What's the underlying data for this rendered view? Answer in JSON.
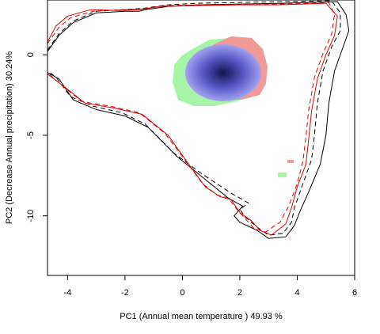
{
  "chart_data": {
    "type": "scatter",
    "title": "",
    "xlabel": "PC1 (Annual mean temperature ) 49.93 %",
    "ylabel": "PC2 (Decrease Annual precipitation) 30.24%",
    "xlim": [
      -4.7,
      6.0
    ],
    "ylim": [
      -13.7,
      3.4
    ],
    "xticks": [
      -4,
      -2,
      0,
      2,
      4,
      6
    ],
    "yticks": [
      0,
      -5,
      -10
    ],
    "grid": false,
    "legend": "none",
    "colors": {
      "line_black": "#000000",
      "line_red": "#e00000",
      "niche_green": "#a6f5a6",
      "niche_red": "#f09a9a",
      "overlap_blue": "#8c8ce6",
      "density_dark": "#141450"
    },
    "series": [
      {
        "style": "solid",
        "color": "#000000",
        "points": [
          [
            -4.7,
            0.2
          ],
          [
            -4.3,
            1.2
          ],
          [
            -3.8,
            2.0
          ],
          [
            -3.0,
            2.6
          ],
          [
            -2.0,
            2.7
          ],
          [
            -1.5,
            2.7
          ],
          [
            -1.3,
            2.8
          ],
          [
            -0.5,
            3.0
          ],
          [
            0.5,
            3.1
          ],
          [
            2.0,
            3.15
          ],
          [
            3.5,
            3.2
          ],
          [
            5.4,
            3.3
          ],
          [
            5.7,
            2.5
          ],
          [
            5.8,
            1.5
          ],
          [
            5.6,
            0.5
          ],
          [
            5.3,
            -1.0
          ],
          [
            5.1,
            -3.0
          ],
          [
            5.0,
            -5.0
          ],
          [
            4.8,
            -6.8
          ],
          [
            4.4,
            -8.5
          ],
          [
            4.1,
            -9.7
          ],
          [
            3.9,
            -10.6
          ],
          [
            3.6,
            -11.3
          ],
          [
            3.0,
            -11.4
          ],
          [
            2.6,
            -10.9
          ],
          [
            2.0,
            -10.4
          ],
          [
            1.8,
            -10.0
          ],
          [
            2.1,
            -9.4
          ],
          [
            1.6,
            -8.9
          ],
          [
            0.7,
            -7.6
          ],
          [
            -0.2,
            -6.3
          ],
          [
            -1.2,
            -4.5
          ],
          [
            -2.0,
            -3.8
          ],
          [
            -3.0,
            -3.4
          ],
          [
            -3.8,
            -2.8
          ],
          [
            -4.3,
            -1.5
          ],
          [
            -4.7,
            -1.1
          ]
        ]
      },
      {
        "style": "dashed",
        "color": "#000000",
        "points": [
          [
            -4.7,
            0.3
          ],
          [
            -4.3,
            1.3
          ],
          [
            -3.8,
            2.1
          ],
          [
            -3.0,
            2.7
          ],
          [
            -2.0,
            2.8
          ],
          [
            -1.3,
            2.9
          ],
          [
            -0.5,
            3.1
          ],
          [
            0.5,
            3.2
          ],
          [
            2.0,
            3.25
          ],
          [
            3.5,
            3.3
          ],
          [
            5.2,
            3.35
          ],
          [
            5.5,
            2.6
          ],
          [
            5.5,
            1.5
          ],
          [
            5.2,
            0.5
          ],
          [
            4.9,
            -1.0
          ],
          [
            4.7,
            -3.0
          ],
          [
            4.6,
            -5.0
          ],
          [
            4.5,
            -6.5
          ],
          [
            4.2,
            -8.0
          ],
          [
            3.9,
            -9.5
          ],
          [
            3.8,
            -10.4
          ],
          [
            3.5,
            -11.1
          ],
          [
            3.0,
            -11.2
          ],
          [
            2.6,
            -10.7
          ],
          [
            2.2,
            -10.1
          ],
          [
            2.0,
            -9.6
          ],
          [
            2.3,
            -9.2
          ],
          [
            1.7,
            -8.6
          ],
          [
            0.6,
            -7.3
          ],
          [
            -0.3,
            -6.1
          ],
          [
            -1.3,
            -4.3
          ],
          [
            -2.1,
            -3.6
          ],
          [
            -3.1,
            -3.2
          ],
          [
            -3.9,
            -2.6
          ],
          [
            -4.4,
            -1.4
          ],
          [
            -4.7,
            -1.0
          ]
        ]
      },
      {
        "style": "solid",
        "color": "#e00000",
        "points": [
          [
            -4.7,
            0.8
          ],
          [
            -4.4,
            1.8
          ],
          [
            -4.0,
            2.4
          ],
          [
            -3.2,
            2.8
          ],
          [
            -2.2,
            2.75
          ],
          [
            -1.5,
            2.8
          ],
          [
            -0.8,
            3.0
          ],
          [
            0.5,
            3.05
          ],
          [
            2.0,
            3.1
          ],
          [
            3.3,
            3.1
          ],
          [
            5.0,
            3.2
          ],
          [
            5.4,
            2.4
          ],
          [
            5.3,
            1.2
          ],
          [
            5.0,
            0.0
          ],
          [
            4.7,
            -1.5
          ],
          [
            4.5,
            -3.5
          ],
          [
            4.4,
            -5.2
          ],
          [
            4.3,
            -6.8
          ],
          [
            4.0,
            -8.2
          ],
          [
            3.8,
            -9.5
          ],
          [
            3.6,
            -10.5
          ],
          [
            3.1,
            -11.2
          ],
          [
            2.7,
            -10.9
          ],
          [
            2.4,
            -10.3
          ],
          [
            2.0,
            -9.8
          ],
          [
            1.7,
            -9.0
          ],
          [
            1.3,
            -8.8
          ],
          [
            0.8,
            -8.2
          ],
          [
            0.3,
            -7.0
          ],
          [
            -0.5,
            -5.0
          ],
          [
            -1.4,
            -3.7
          ],
          [
            -2.4,
            -3.3
          ],
          [
            -3.4,
            -3.0
          ],
          [
            -4.1,
            -2.0
          ],
          [
            -4.7,
            -1.2
          ]
        ]
      },
      {
        "style": "dashed",
        "color": "#e00000",
        "points": [
          [
            -4.7,
            0.7
          ],
          [
            -4.3,
            1.7
          ],
          [
            -3.9,
            2.3
          ],
          [
            -3.1,
            2.7
          ],
          [
            -2.1,
            2.8
          ],
          [
            -1.3,
            2.85
          ],
          [
            -0.6,
            3.05
          ],
          [
            0.6,
            3.1
          ],
          [
            2.1,
            3.15
          ],
          [
            3.4,
            3.15
          ],
          [
            5.1,
            3.25
          ],
          [
            5.3,
            2.5
          ],
          [
            5.2,
            1.3
          ],
          [
            4.9,
            0.1
          ],
          [
            4.6,
            -1.4
          ],
          [
            4.4,
            -3.4
          ],
          [
            4.3,
            -5.1
          ],
          [
            4.2,
            -6.6
          ],
          [
            4.0,
            -8.0
          ],
          [
            3.7,
            -9.4
          ],
          [
            3.4,
            -10.4
          ],
          [
            2.9,
            -11.0
          ],
          [
            2.5,
            -10.8
          ],
          [
            2.2,
            -10.2
          ],
          [
            1.9,
            -9.6
          ],
          [
            1.6,
            -8.9
          ],
          [
            1.2,
            -8.7
          ],
          [
            0.7,
            -8.0
          ],
          [
            0.2,
            -6.8
          ],
          [
            -0.6,
            -4.9
          ],
          [
            -1.5,
            -3.6
          ],
          [
            -2.5,
            -3.2
          ],
          [
            -3.5,
            -2.9
          ],
          [
            -4.2,
            -1.9
          ],
          [
            -4.7,
            -1.1
          ]
        ]
      }
    ]
  }
}
